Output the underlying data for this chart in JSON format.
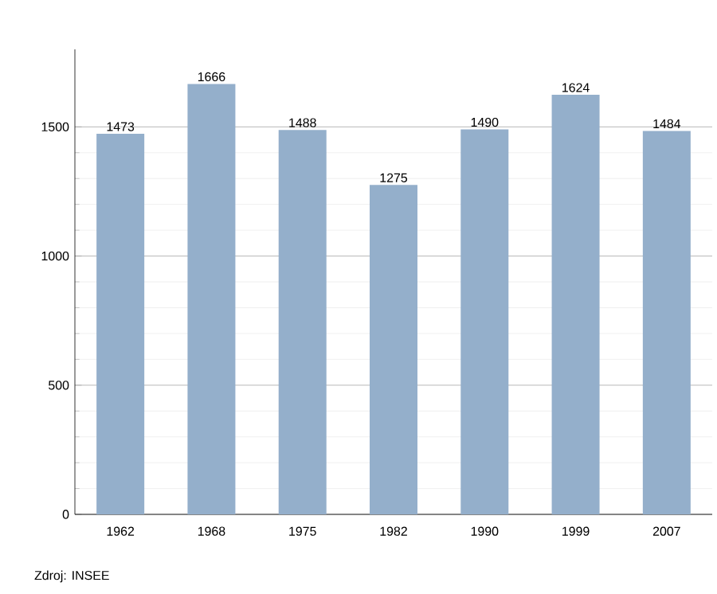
{
  "chart_data": {
    "type": "bar",
    "categories": [
      "1962",
      "1968",
      "1975",
      "1982",
      "1990",
      "1999",
      "2007"
    ],
    "values": [
      1473,
      1666,
      1488,
      1275,
      1490,
      1624,
      1484
    ],
    "color": "#94afcb",
    "ylim": [
      0,
      1800
    ],
    "yticks": [
      0,
      500,
      1000,
      1500
    ],
    "grid": "y",
    "data_labels": true,
    "annotations": [
      "Zdroj: INSEE"
    ]
  }
}
